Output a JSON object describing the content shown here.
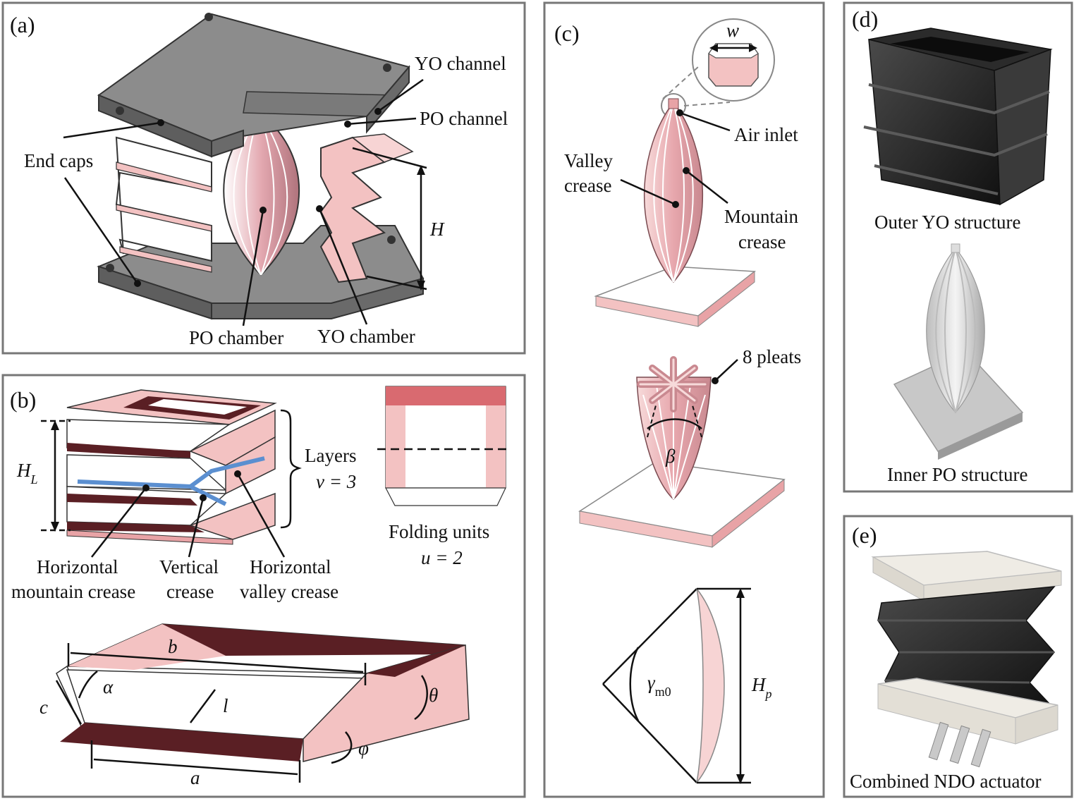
{
  "panels": {
    "a": {
      "tag": "(a)",
      "labels": {
        "yo_channel": "YO channel",
        "po_channel": "PO channel",
        "end_caps": "End caps",
        "height": "H",
        "po_chamber": "PO chamber",
        "yo_chamber": "YO chamber"
      }
    },
    "b": {
      "tag": "(b)",
      "labels": {
        "layer_height": "H",
        "layer_height_sub": "L",
        "layers": "Layers",
        "layers_eq": "v = 3",
        "folding_units": "Folding units",
        "folding_units_eq": "u = 2",
        "hmc_1": "Horizontal",
        "hmc_2": "mountain crease",
        "vc_1": "Vertical",
        "vc_2": "crease",
        "hvc_1": "Horizontal",
        "hvc_2": "valley crease",
        "dim_b": "b",
        "dim_a": "a",
        "dim_c": "c",
        "dim_l": "l",
        "ang_alpha": "α",
        "ang_theta": "θ",
        "ang_phi": "φ"
      }
    },
    "c": {
      "tag": "(c)",
      "labels": {
        "width": "w",
        "air_inlet": "Air inlet",
        "valley_1": "Valley",
        "valley_2": "crease",
        "mountain_1": "Mountain",
        "mountain_2": "crease",
        "pleats": "8 pleats",
        "beta": "β",
        "gamma": "γ",
        "gamma_sub": "m0",
        "hp": "H",
        "hp_sub": "p"
      }
    },
    "d": {
      "tag": "(d)",
      "labels": {
        "outer": "Outer YO structure",
        "inner": "Inner PO structure"
      }
    },
    "e": {
      "tag": "(e)",
      "labels": {
        "combined": "Combined NDO actuator"
      }
    }
  },
  "colors": {
    "frame": "#777777",
    "pink": "#f3c2c2",
    "pink_dark": "#e8a3a6",
    "maroon": "#5a1f24",
    "cap_gray": "#8c8c8c",
    "cap_dark": "#5e5e5e",
    "crease_blue": "#5b8fd0",
    "black_print": "#1e1e1e",
    "white_print": "#ececec"
  }
}
